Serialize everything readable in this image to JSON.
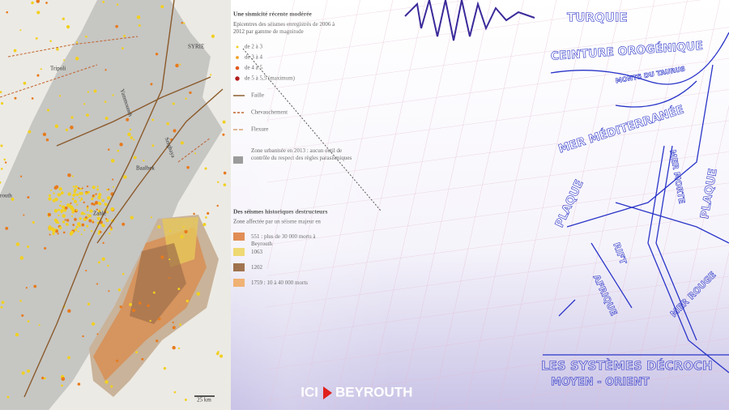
{
  "map": {
    "places": [
      "Tripoli",
      "SYRIE",
      "Yammouneh",
      "Serghaya",
      "Baalbek",
      "routh",
      "Zahlé"
    ],
    "scale": "25 km"
  },
  "legend": {
    "recent_title": "Une sismicité récente modérée",
    "recent_subtitle": "Epicentres des séismes enregistrés de 2006 à 2012 par gamme de magnitude",
    "magnitudes": [
      "de 2 à 3",
      "de 3 à 4",
      "de 4 à 5",
      "de 5 à 5,5 (maximum)"
    ],
    "lines": [
      "Faille",
      "Chevauchement",
      "Flexure"
    ],
    "urban": "Zone urbanisée en 2013 : aucun outil de contrôle du respect des règles parasismiques",
    "historic_title": "Des séismes historiques destructeurs",
    "historic_subtitle": "Zone affectée par un séisme majeur en",
    "historic": [
      "551 : plus de 30 000 morts à Beyrouth",
      "1063",
      "1202",
      "1759 : 10 à 40 000 morts"
    ]
  },
  "sketch": {
    "labels": [
      "TURQUIE",
      "CEINTURE OROGÉNIQUE",
      "MONTS DU TAURUS",
      "MER MÉDITERRANÉE",
      "PLAQUE",
      "AFRIQUE",
      "RIFT",
      "MER MORTE",
      "MER ROUGE",
      "PLAQUE"
    ],
    "caption": "LES SYSTÈMES DÉCROCH",
    "caption2": "MOYEN - ORIENT"
  },
  "logo": {
    "left": "ICI",
    "right": "BEYROUTH"
  }
}
